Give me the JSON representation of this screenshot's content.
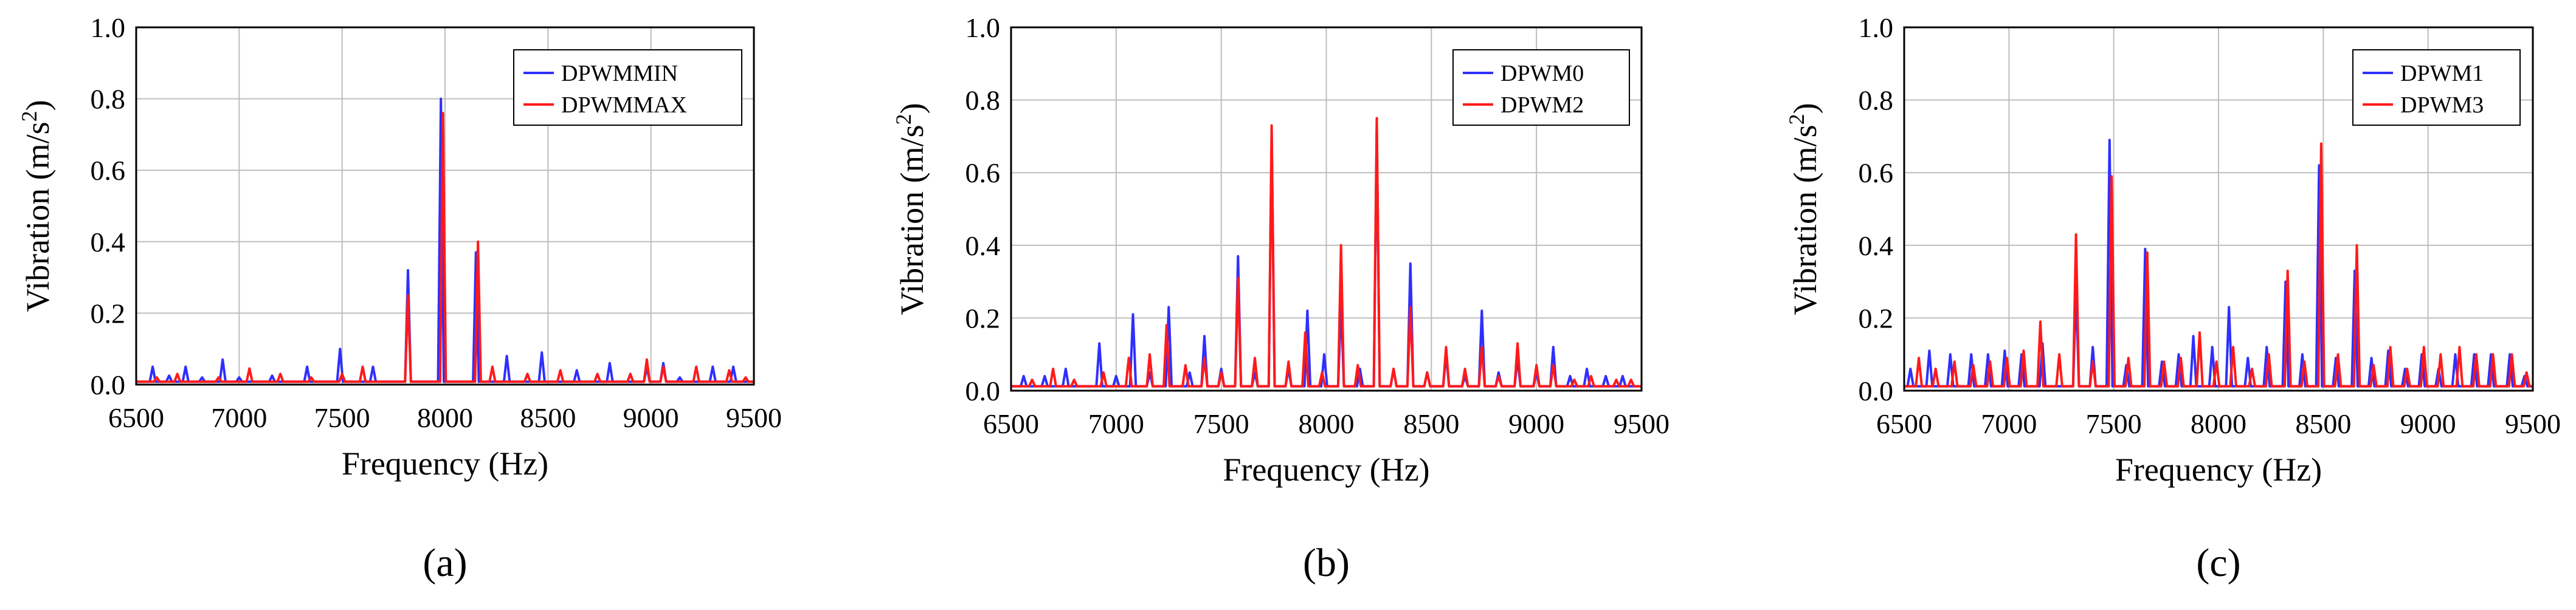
{
  "chart_data": [
    {
      "type": "line",
      "panel_label": "(a)",
      "xlabel": "Frequency (Hz)",
      "ylabel": "Vibration (m/s²)",
      "xlim": [
        6500,
        9500
      ],
      "ylim": [
        0,
        1.0
      ],
      "xticks": [
        "6500",
        "7000",
        "7500",
        "8000",
        "8500",
        "9000",
        "9500"
      ],
      "yticks": [
        "0.0",
        "0.2",
        "0.4",
        "0.6",
        "0.8",
        "1.0"
      ],
      "grid": true,
      "legend_position": "top-right",
      "baseline": 0.008,
      "series": [
        {
          "name": "DPWMMIN",
          "color": "#2f2fff",
          "peaks": [
            [
              6580,
              0.05
            ],
            [
              6660,
              0.025
            ],
            [
              6740,
              0.05
            ],
            [
              6820,
              0.02
            ],
            [
              6920,
              0.07
            ],
            [
              7000,
              0.02
            ],
            [
              7160,
              0.025
            ],
            [
              7330,
              0.05
            ],
            [
              7490,
              0.1
            ],
            [
              7650,
              0.05
            ],
            [
              7820,
              0.32
            ],
            [
              7980,
              0.8
            ],
            [
              8150,
              0.37
            ],
            [
              8300,
              0.08
            ],
            [
              8470,
              0.09
            ],
            [
              8640,
              0.04
            ],
            [
              8800,
              0.06
            ],
            [
              8980,
              0.05
            ],
            [
              9060,
              0.06
            ],
            [
              9140,
              0.02
            ],
            [
              9300,
              0.05
            ],
            [
              9400,
              0.05
            ]
          ]
        },
        {
          "name": "DPWMMAX",
          "color": "#ff1a1a",
          "peaks": [
            [
              6600,
              0.02
            ],
            [
              6700,
              0.03
            ],
            [
              6900,
              0.02
            ],
            [
              7050,
              0.045
            ],
            [
              7200,
              0.03
            ],
            [
              7350,
              0.02
            ],
            [
              7500,
              0.03
            ],
            [
              7600,
              0.05
            ],
            [
              7820,
              0.25
            ],
            [
              7990,
              0.76
            ],
            [
              8160,
              0.4
            ],
            [
              8230,
              0.05
            ],
            [
              8400,
              0.03
            ],
            [
              8560,
              0.04
            ],
            [
              8740,
              0.03
            ],
            [
              8900,
              0.03
            ],
            [
              8980,
              0.07
            ],
            [
              9060,
              0.05
            ],
            [
              9220,
              0.05
            ],
            [
              9380,
              0.04
            ],
            [
              9460,
              0.02
            ]
          ]
        }
      ]
    },
    {
      "type": "line",
      "panel_label": "(b)",
      "xlabel": "Frequency (Hz)",
      "ylabel": "Vibration (m/s²)",
      "xlim": [
        6500,
        9500
      ],
      "ylim": [
        0,
        1.0
      ],
      "xticks": [
        "6500",
        "7000",
        "7500",
        "8000",
        "8500",
        "9000",
        "9500"
      ],
      "yticks": [
        "0.0",
        "0.2",
        "0.4",
        "0.6",
        "0.8",
        "1.0"
      ],
      "grid": true,
      "legend_position": "top-right",
      "baseline": 0.012,
      "series": [
        {
          "name": "DPWM0",
          "color": "#2f2fff",
          "peaks": [
            [
              6560,
              0.04
            ],
            [
              6660,
              0.04
            ],
            [
              6760,
              0.06
            ],
            [
              6920,
              0.13
            ],
            [
              7000,
              0.04
            ],
            [
              7080,
              0.21
            ],
            [
              7160,
              0.05
            ],
            [
              7250,
              0.23
            ],
            [
              7350,
              0.05
            ],
            [
              7420,
              0.15
            ],
            [
              7500,
              0.06
            ],
            [
              7580,
              0.37
            ],
            [
              7660,
              0.05
            ],
            [
              7740,
              0.7
            ],
            [
              7820,
              0.06
            ],
            [
              7910,
              0.22
            ],
            [
              7990,
              0.1
            ],
            [
              8070,
              0.24
            ],
            [
              8160,
              0.06
            ],
            [
              8240,
              0.72
            ],
            [
              8320,
              0.06
            ],
            [
              8400,
              0.35
            ],
            [
              8480,
              0.05
            ],
            [
              8570,
              0.1
            ],
            [
              8660,
              0.04
            ],
            [
              8740,
              0.22
            ],
            [
              8820,
              0.05
            ],
            [
              8910,
              0.09
            ],
            [
              9000,
              0.05
            ],
            [
              9080,
              0.12
            ],
            [
              9160,
              0.04
            ],
            [
              9240,
              0.06
            ],
            [
              9330,
              0.04
            ],
            [
              9410,
              0.04
            ]
          ]
        },
        {
          "name": "DPWM2",
          "color": "#ff1a1a",
          "peaks": [
            [
              6600,
              0.03
            ],
            [
              6700,
              0.06
            ],
            [
              6800,
              0.03
            ],
            [
              6940,
              0.05
            ],
            [
              7060,
              0.09
            ],
            [
              7160,
              0.1
            ],
            [
              7240,
              0.18
            ],
            [
              7330,
              0.07
            ],
            [
              7420,
              0.09
            ],
            [
              7500,
              0.05
            ],
            [
              7580,
              0.31
            ],
            [
              7660,
              0.09
            ],
            [
              7740,
              0.73
            ],
            [
              7820,
              0.08
            ],
            [
              7900,
              0.16
            ],
            [
              7980,
              0.05
            ],
            [
              8070,
              0.4
            ],
            [
              8150,
              0.07
            ],
            [
              8240,
              0.75
            ],
            [
              8320,
              0.06
            ],
            [
              8400,
              0.23
            ],
            [
              8480,
              0.05
            ],
            [
              8570,
              0.12
            ],
            [
              8660,
              0.06
            ],
            [
              8740,
              0.12
            ],
            [
              8820,
              0.04
            ],
            [
              8910,
              0.13
            ],
            [
              9000,
              0.07
            ],
            [
              9080,
              0.07
            ],
            [
              9180,
              0.03
            ],
            [
              9260,
              0.04
            ],
            [
              9380,
              0.03
            ],
            [
              9450,
              0.03
            ]
          ]
        }
      ]
    },
    {
      "type": "line",
      "panel_label": "(c)",
      "xlabel": "Frequency (Hz)",
      "ylabel": "Vibration (m/s²)",
      "xlim": [
        6500,
        9500
      ],
      "ylim": [
        0,
        1.0
      ],
      "xticks": [
        "6500",
        "7000",
        "7500",
        "8000",
        "8500",
        "9000",
        "9500"
      ],
      "yticks": [
        "0.0",
        "0.2",
        "0.4",
        "0.6",
        "0.8",
        "1.0"
      ],
      "grid": true,
      "legend_position": "top-right",
      "baseline": 0.012,
      "series": [
        {
          "name": "DPWM1",
          "color": "#2f2fff",
          "peaks": [
            [
              6530,
              0.06
            ],
            [
              6620,
              0.11
            ],
            [
              6720,
              0.1
            ],
            [
              6820,
              0.1
            ],
            [
              6900,
              0.1
            ],
            [
              6980,
              0.11
            ],
            [
              7060,
              0.1
            ],
            [
              7160,
              0.13
            ],
            [
              7320,
              0.28
            ],
            [
              7400,
              0.12
            ],
            [
              7480,
              0.69
            ],
            [
              7560,
              0.07
            ],
            [
              7650,
              0.39
            ],
            [
              7730,
              0.08
            ],
            [
              7810,
              0.1
            ],
            [
              7880,
              0.15
            ],
            [
              7970,
              0.12
            ],
            [
              8050,
              0.23
            ],
            [
              8140,
              0.09
            ],
            [
              8230,
              0.12
            ],
            [
              8320,
              0.3
            ],
            [
              8400,
              0.1
            ],
            [
              8480,
              0.62
            ],
            [
              8560,
              0.09
            ],
            [
              8650,
              0.33
            ],
            [
              8730,
              0.09
            ],
            [
              8810,
              0.11
            ],
            [
              8890,
              0.06
            ],
            [
              8970,
              0.1
            ],
            [
              9050,
              0.06
            ],
            [
              9130,
              0.1
            ],
            [
              9220,
              0.1
            ],
            [
              9300,
              0.1
            ],
            [
              9390,
              0.1
            ],
            [
              9460,
              0.04
            ]
          ]
        },
        {
          "name": "DPWM3",
          "color": "#ff1a1a",
          "peaks": [
            [
              6570,
              0.09
            ],
            [
              6650,
              0.06
            ],
            [
              6740,
              0.08
            ],
            [
              6830,
              0.07
            ],
            [
              6910,
              0.08
            ],
            [
              6990,
              0.09
            ],
            [
              7070,
              0.11
            ],
            [
              7150,
              0.19
            ],
            [
              7240,
              0.1
            ],
            [
              7320,
              0.43
            ],
            [
              7400,
              0.08
            ],
            [
              7490,
              0.59
            ],
            [
              7570,
              0.09
            ],
            [
              7660,
              0.38
            ],
            [
              7740,
              0.08
            ],
            [
              7820,
              0.09
            ],
            [
              7910,
              0.16
            ],
            [
              7990,
              0.08
            ],
            [
              8070,
              0.12
            ],
            [
              8160,
              0.06
            ],
            [
              8240,
              0.1
            ],
            [
              8330,
              0.33
            ],
            [
              8410,
              0.08
            ],
            [
              8490,
              0.68
            ],
            [
              8570,
              0.1
            ],
            [
              8660,
              0.4
            ],
            [
              8740,
              0.07
            ],
            [
              8820,
              0.12
            ],
            [
              8900,
              0.06
            ],
            [
              8980,
              0.12
            ],
            [
              9060,
              0.1
            ],
            [
              9150,
              0.12
            ],
            [
              9230,
              0.1
            ],
            [
              9310,
              0.1
            ],
            [
              9400,
              0.1
            ],
            [
              9470,
              0.05
            ]
          ]
        }
      ]
    }
  ]
}
